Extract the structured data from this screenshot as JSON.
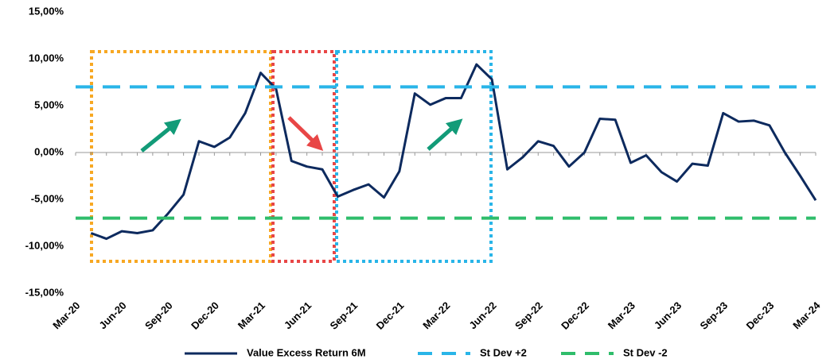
{
  "chart_data": {
    "type": "line",
    "categories": [
      "Mar-20",
      null,
      null,
      "Jun-20",
      null,
      null,
      "Sep-20",
      null,
      null,
      "Dec-20",
      null,
      null,
      "Mar-21",
      null,
      null,
      "Jun-21",
      null,
      null,
      "Sep-21",
      null,
      null,
      "Dec-21",
      null,
      null,
      "Mar-22",
      null,
      null,
      "Jun-22",
      null,
      null,
      "Sep-22",
      null,
      null,
      "Dec-22",
      null,
      null,
      "Mar-23",
      null,
      null,
      "Jun-23",
      null,
      null,
      "Sep-23",
      null,
      null,
      "Dec-23",
      null,
      null,
      "Mar-24"
    ],
    "series": [
      {
        "name": "Value Excess Return 6M",
        "color": "#0d2a5e",
        "dash": false,
        "values": [
          null,
          -8.6,
          -9.2,
          -8.4,
          -8.6,
          -8.3,
          -6.5,
          -4.5,
          1.2,
          0.6,
          1.6,
          4.2,
          8.5,
          6.8,
          -0.9,
          -1.5,
          -1.8,
          -4.7,
          -4.0,
          -3.4,
          -4.8,
          -2.0,
          6.3,
          5.1,
          5.8,
          5.8,
          9.4,
          7.8,
          -1.8,
          -0.5,
          1.2,
          0.7,
          -1.5,
          0.0,
          3.6,
          3.5,
          -1.1,
          -0.3,
          -2.1,
          -3.1,
          -1.2,
          -1.4,
          4.2,
          3.3,
          3.4,
          2.9,
          0.0,
          -2.5,
          -5.1
        ]
      },
      {
        "name": "St Dev +2",
        "color": "#29b5e8",
        "dash": true,
        "values": [
          7,
          7,
          7,
          7,
          7,
          7,
          7,
          7,
          7,
          7,
          7,
          7,
          7,
          7,
          7,
          7,
          7,
          7,
          7,
          7,
          7,
          7,
          7,
          7,
          7,
          7,
          7,
          7,
          7,
          7,
          7,
          7,
          7,
          7,
          7,
          7,
          7,
          7,
          7,
          7,
          7,
          7,
          7,
          7,
          7,
          7,
          7,
          7,
          7
        ]
      },
      {
        "name": "St Dev -2",
        "color": "#2fbd6b",
        "dash": true,
        "values": [
          -7,
          -7,
          -7,
          -7,
          -7,
          -7,
          -7,
          -7,
          -7,
          -7,
          -7,
          -7,
          -7,
          -7,
          -7,
          -7,
          -7,
          -7,
          -7,
          -7,
          -7,
          -7,
          -7,
          -7,
          -7,
          -7,
          -7,
          -7,
          -7,
          -7,
          -7,
          -7,
          -7,
          -7,
          -7,
          -7,
          -7,
          -7,
          -7,
          -7,
          -7,
          -7,
          -7,
          -7,
          -7,
          -7,
          -7,
          -7,
          -7
        ]
      }
    ],
    "ylim": [
      -15,
      15
    ],
    "yticks": [
      {
        "value": -15,
        "label": "-15,00%"
      },
      {
        "value": -10,
        "label": "-10,00%"
      },
      {
        "value": -5,
        "label": "-5,00%"
      },
      {
        "value": 0,
        "label": "0,00%"
      },
      {
        "value": 5,
        "label": "5,00%"
      },
      {
        "value": 10,
        "label": "10,00%"
      },
      {
        "value": 15,
        "label": "15,00%"
      }
    ],
    "grid": false,
    "legend": "bottom"
  }
}
